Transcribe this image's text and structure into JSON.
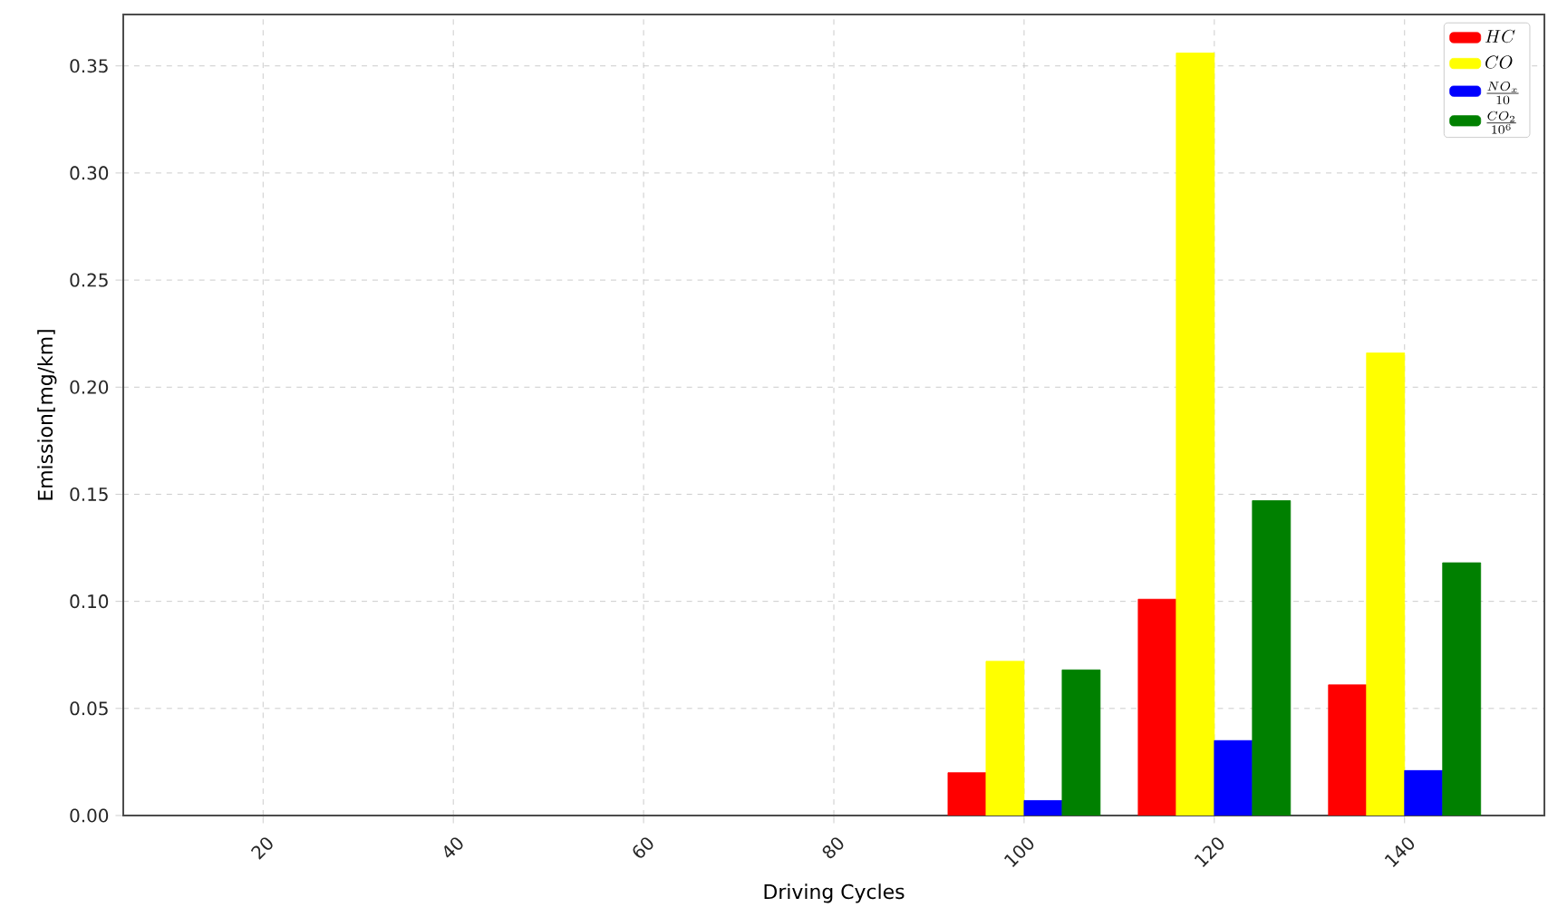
{
  "chart_data": {
    "type": "bar",
    "xlabel": "Driving Cycles",
    "ylabel": "Emission[mg/km]",
    "xlim": [
      5.3,
      154.7
    ],
    "xticks": [
      20,
      40,
      60,
      80,
      100,
      120,
      140
    ],
    "ylim": [
      0,
      0.374
    ],
    "yticks": [
      {
        "value": 0,
        "label": "0.00"
      },
      0.05,
      {
        "value": 0.1,
        "label": "0.10"
      },
      0.15,
      {
        "value": 0.2,
        "label": "0.20"
      },
      0.25,
      {
        "value": 0.3,
        "label": "0.30"
      },
      0.35
    ],
    "grid": true,
    "legend": "top right",
    "series": [
      {
        "name": "HC",
        "color": "#ff0000",
        "x": [
          94,
          114,
          134
        ],
        "values": [
          0.02,
          0.101,
          0.061
        ]
      },
      {
        "name": "CO",
        "color": "#ffff00",
        "x": [
          98,
          118,
          138
        ],
        "values": [
          0.072,
          0.356,
          0.216
        ]
      },
      {
        "name": "\\frac{NO_x}{10}",
        "color": "#0000ff",
        "x": [
          102,
          122,
          142
        ],
        "values": [
          0.007,
          0.035,
          0.021
        ]
      },
      {
        "name": "\\frac{CO_2}{10^6}",
        "color": "#008000",
        "x": [
          106,
          126,
          146
        ],
        "values": [
          0.068,
          0.147,
          0.118
        ]
      }
    ]
  }
}
